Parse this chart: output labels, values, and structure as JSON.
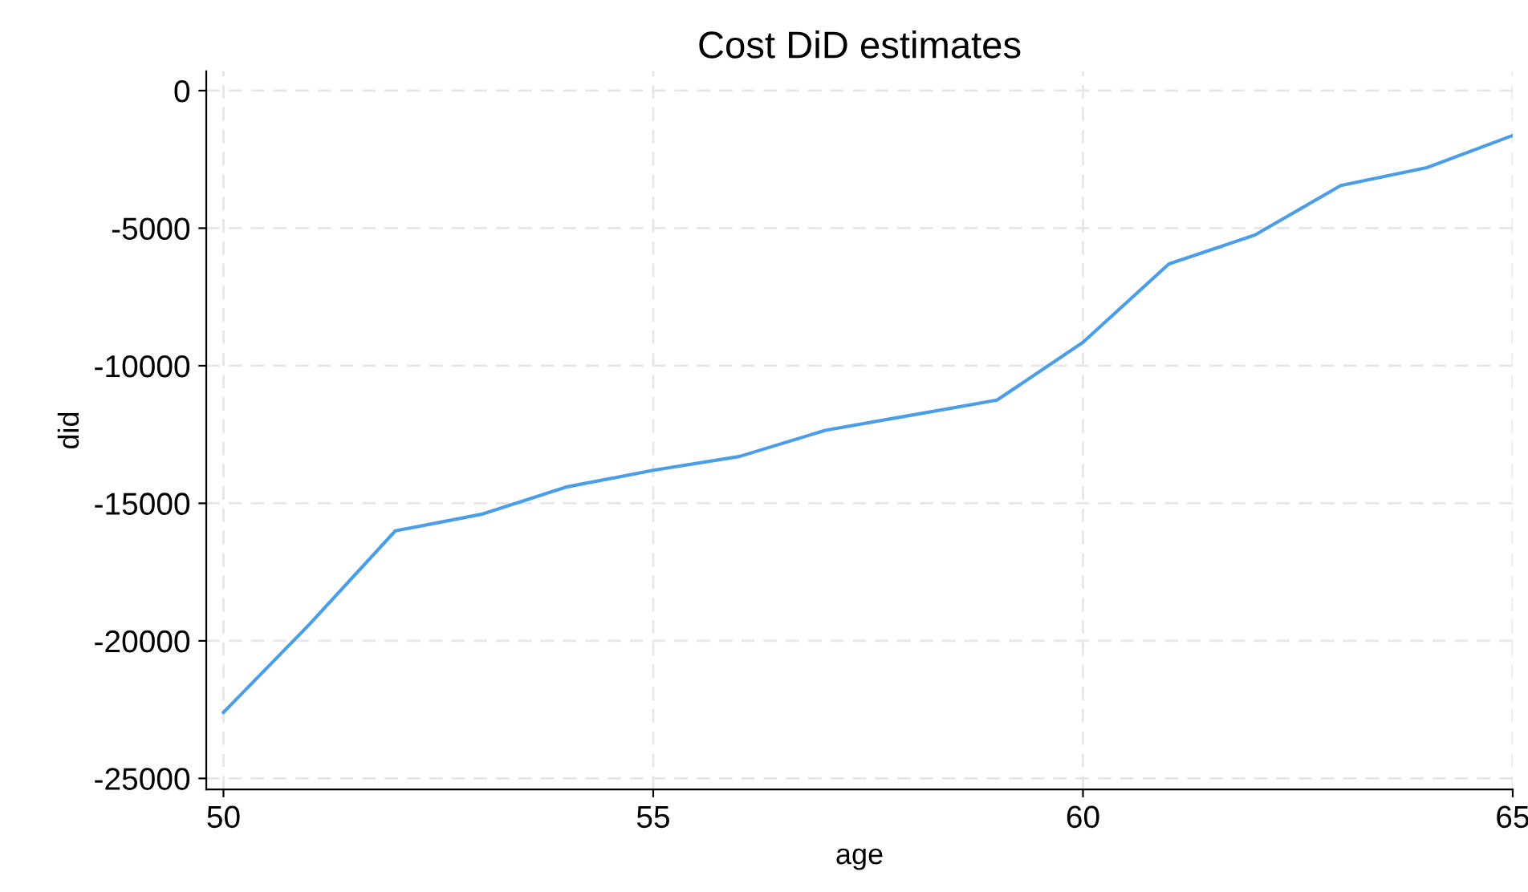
{
  "chart_data": {
    "type": "line",
    "title": "Cost DiD estimates",
    "xlabel": "age",
    "ylabel": "did",
    "x": [
      50,
      51,
      52,
      53,
      54,
      55,
      56,
      57,
      58,
      59,
      60,
      61,
      62,
      63,
      64,
      65
    ],
    "series": [
      {
        "color": "#4a9ee8",
        "values": [
          -22600,
          -19400,
          -16000,
          -15400,
          -14400,
          -13800,
          -13300,
          -12350,
          -11800,
          -11250,
          -9150,
          -6300,
          -5250,
          -3450,
          -2800,
          -1630
        ]
      }
    ],
    "xlim": [
      49.8,
      65
    ],
    "xticks": [
      50,
      55,
      60,
      65
    ],
    "ylim": [
      -25400,
      700
    ],
    "yticks": [
      0,
      -5000,
      -10000,
      -15000,
      -20000,
      -25000
    ],
    "grid": true,
    "marker": "none",
    "line_style": "solid"
  }
}
